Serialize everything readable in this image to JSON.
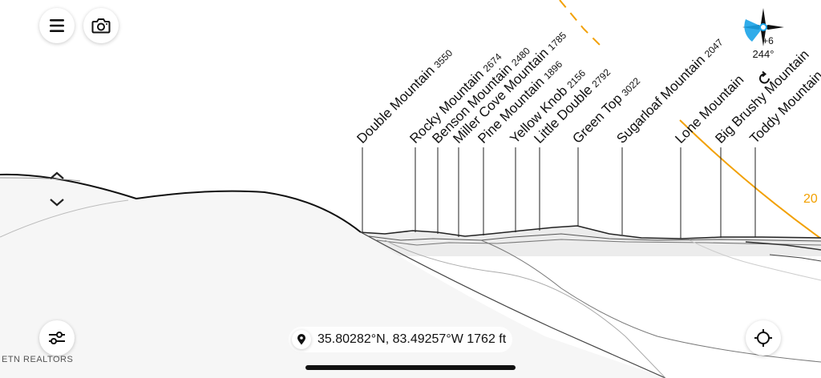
{
  "peaks": [
    {
      "name": "Double Mountain",
      "elev": "3550"
    },
    {
      "name": "Rocky Mountain",
      "elev": "2674"
    },
    {
      "name": "Benson Mountain",
      "elev": "2480"
    },
    {
      "name": "Miller Cove Mountain",
      "elev": "1785"
    },
    {
      "name": "Pine Mountain",
      "elev": "1896"
    },
    {
      "name": "Yellow Knob",
      "elev": "2156"
    },
    {
      "name": "Little Double",
      "elev": "2792"
    },
    {
      "name": "Green Top",
      "elev": "3022"
    },
    {
      "name": "Sugarloaf Mountain",
      "elev": "2047"
    },
    {
      "name": "Lone Mountain",
      "elev": ""
    },
    {
      "name": "Big Brushy Mountain",
      "elev": ""
    },
    {
      "name": "Toddy Mountain",
      "elev": ""
    }
  ],
  "compass": {
    "heading": "244°",
    "tilt": "+6",
    "accent": "#1aa3e8"
  },
  "location": {
    "text": "35.80282°N, 83.49257°W 1762 ft"
  },
  "sun_path": {
    "label": "20",
    "color": "#f2a000"
  },
  "watermark": "ETN REALTORS",
  "icons": {
    "menu": "menu-icon",
    "camera": "camera-icon",
    "up": "chevron-up-icon",
    "down": "chevron-down-icon",
    "settings": "sliders-icon",
    "location": "pin-icon",
    "recenter": "crosshair-icon",
    "rotate": "rotate-icon"
  }
}
